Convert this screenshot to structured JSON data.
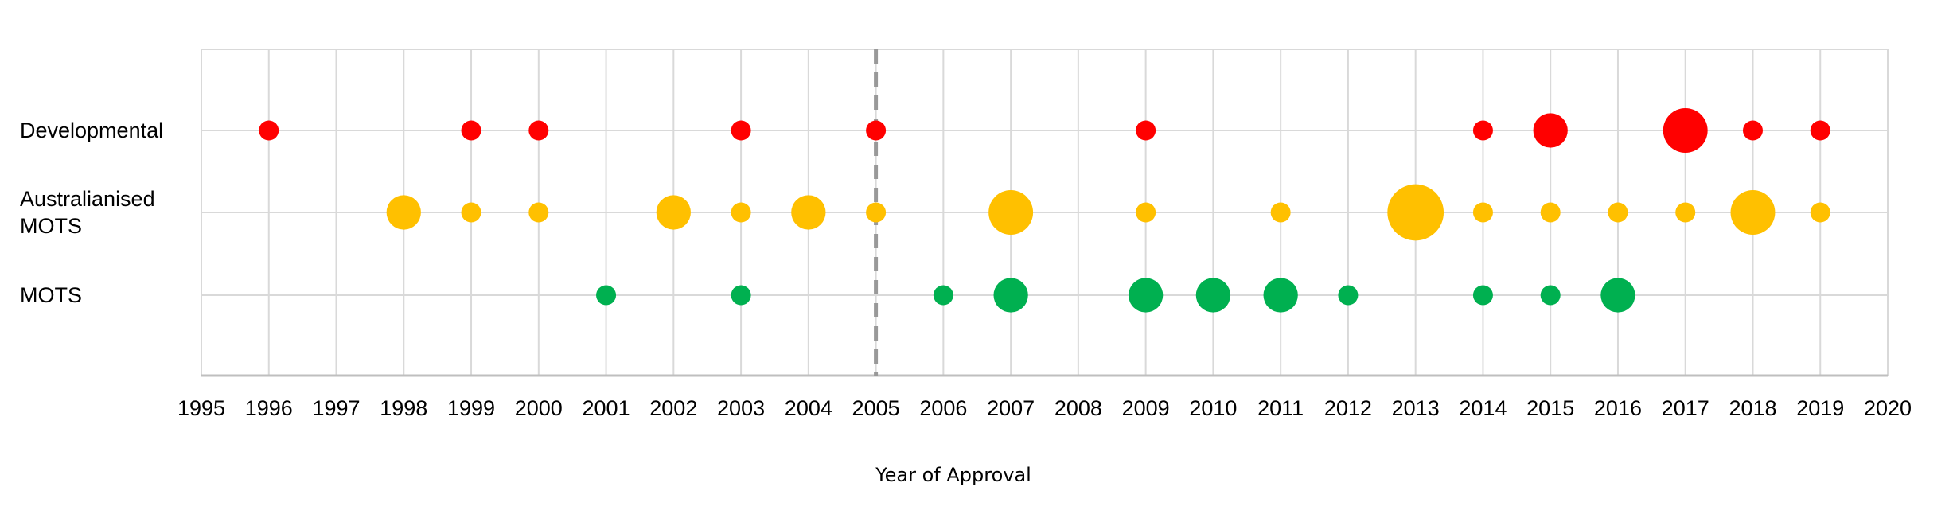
{
  "chart_data": {
    "type": "scatter",
    "title": "",
    "xlabel": "Year of Approval",
    "ylabel": "",
    "xlim": [
      1995,
      2020
    ],
    "x_ticks": [
      "1995",
      "1996",
      "1997",
      "1998",
      "1999",
      "2000",
      "2001",
      "2002",
      "2003",
      "2004",
      "2005",
      "2006",
      "2007",
      "2008",
      "2009",
      "2010",
      "2011",
      "2012",
      "2013",
      "2014",
      "2015",
      "2016",
      "2017",
      "2018",
      "2019",
      "2020"
    ],
    "grid": true,
    "reference_line": {
      "x": 2005,
      "style": "dashed",
      "color": "#999999"
    },
    "categories": [
      {
        "label_lines": [
          "Developmental"
        ],
        "color": "#ff0000"
      },
      {
        "label_lines": [
          "Australianised",
          "MOTS"
        ],
        "color": "#ffc000"
      },
      {
        "label_lines": [
          "MOTS"
        ],
        "color": "#00b050"
      }
    ],
    "series": [
      {
        "category_index": 0,
        "color": "#ff0000",
        "points": [
          {
            "x": 1996,
            "size": 1
          },
          {
            "x": 1999,
            "size": 1
          },
          {
            "x": 2000,
            "size": 1
          },
          {
            "x": 2003,
            "size": 1
          },
          {
            "x": 2005,
            "size": 1
          },
          {
            "x": 2009,
            "size": 1
          },
          {
            "x": 2014,
            "size": 1
          },
          {
            "x": 2015,
            "size": 3
          },
          {
            "x": 2017,
            "size": 5
          },
          {
            "x": 2018,
            "size": 1
          },
          {
            "x": 2019,
            "size": 1
          }
        ]
      },
      {
        "category_index": 1,
        "color": "#ffc000",
        "points": [
          {
            "x": 1998,
            "size": 3
          },
          {
            "x": 1999,
            "size": 1
          },
          {
            "x": 2000,
            "size": 1
          },
          {
            "x": 2002,
            "size": 3
          },
          {
            "x": 2003,
            "size": 1
          },
          {
            "x": 2004,
            "size": 3
          },
          {
            "x": 2005,
            "size": 1
          },
          {
            "x": 2007,
            "size": 5
          },
          {
            "x": 2009,
            "size": 1
          },
          {
            "x": 2011,
            "size": 1
          },
          {
            "x": 2013,
            "size": 8
          },
          {
            "x": 2014,
            "size": 1
          },
          {
            "x": 2015,
            "size": 1
          },
          {
            "x": 2016,
            "size": 1
          },
          {
            "x": 2017,
            "size": 1
          },
          {
            "x": 2018,
            "size": 5
          },
          {
            "x": 2019,
            "size": 1
          }
        ]
      },
      {
        "category_index": 2,
        "color": "#00b050",
        "points": [
          {
            "x": 2001,
            "size": 1
          },
          {
            "x": 2003,
            "size": 1
          },
          {
            "x": 2006,
            "size": 1
          },
          {
            "x": 2007,
            "size": 3
          },
          {
            "x": 2009,
            "size": 3
          },
          {
            "x": 2010,
            "size": 3
          },
          {
            "x": 2011,
            "size": 3
          },
          {
            "x": 2012,
            "size": 1
          },
          {
            "x": 2014,
            "size": 1
          },
          {
            "x": 2015,
            "size": 1
          },
          {
            "x": 2016,
            "size": 3
          }
        ]
      }
    ]
  }
}
